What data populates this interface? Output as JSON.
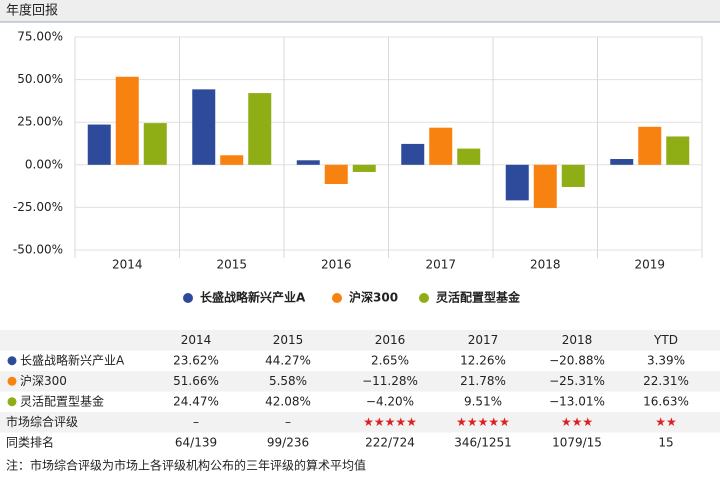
{
  "header": {
    "title": "年度回报"
  },
  "chart_data": {
    "type": "bar",
    "categories": [
      "2014",
      "2015",
      "2016",
      "2017",
      "2018",
      "2019"
    ],
    "series": [
      {
        "name": "长盛战略新兴产业A",
        "color": "#2e4a9a",
        "values": [
          23.62,
          44.27,
          2.65,
          12.26,
          -20.88,
          3.39
        ],
        "value_labels": [
          "23.62%",
          "44.27%",
          "2.65%",
          "12.26%",
          "−20.88%",
          "3.39%"
        ]
      },
      {
        "name": "沪深300",
        "color": "#f7820f",
        "values": [
          51.66,
          5.58,
          -11.28,
          21.78,
          -25.31,
          22.31
        ],
        "value_labels": [
          "51.66%",
          "5.58%",
          "−11.28%",
          "21.78%",
          "−25.31%",
          "22.31%"
        ]
      },
      {
        "name": "灵活配置型基金",
        "color": "#8fad15",
        "values": [
          24.47,
          42.08,
          -4.2,
          9.51,
          -13.01,
          16.63
        ],
        "value_labels": [
          "24.47%",
          "42.08%",
          "−4.20%",
          "9.51%",
          "−13.01%",
          "16.63%"
        ]
      }
    ],
    "ylim": [
      -50,
      75
    ],
    "yticks": [
      {
        "value": -50,
        "label": "-50.00%"
      },
      {
        "value": -25,
        "label": "-25.00%"
      },
      {
        "value": 0,
        "label": "0.00%"
      },
      {
        "value": 25,
        "label": "25.00%"
      },
      {
        "value": 50,
        "label": "50.00%"
      },
      {
        "value": 75,
        "label": "75.00%"
      }
    ],
    "grid": true
  },
  "table": {
    "headers": [
      "2014",
      "2015",
      "2016",
      "2017",
      "2018",
      "YTD"
    ],
    "rows": [
      {
        "label": "市场综合评级",
        "cells": [
          "–",
          "–",
          "★★★★★",
          "★★★★★",
          "★★★",
          "★★"
        ]
      },
      {
        "label": "同类排名",
        "cells": [
          "64/139",
          "99/236",
          "222/724",
          "346/1251",
          "1079/15",
          "15"
        ]
      }
    ],
    "note": "注：市场综合评级为市场上各评级机构公布的三年评级的算术平均值"
  }
}
